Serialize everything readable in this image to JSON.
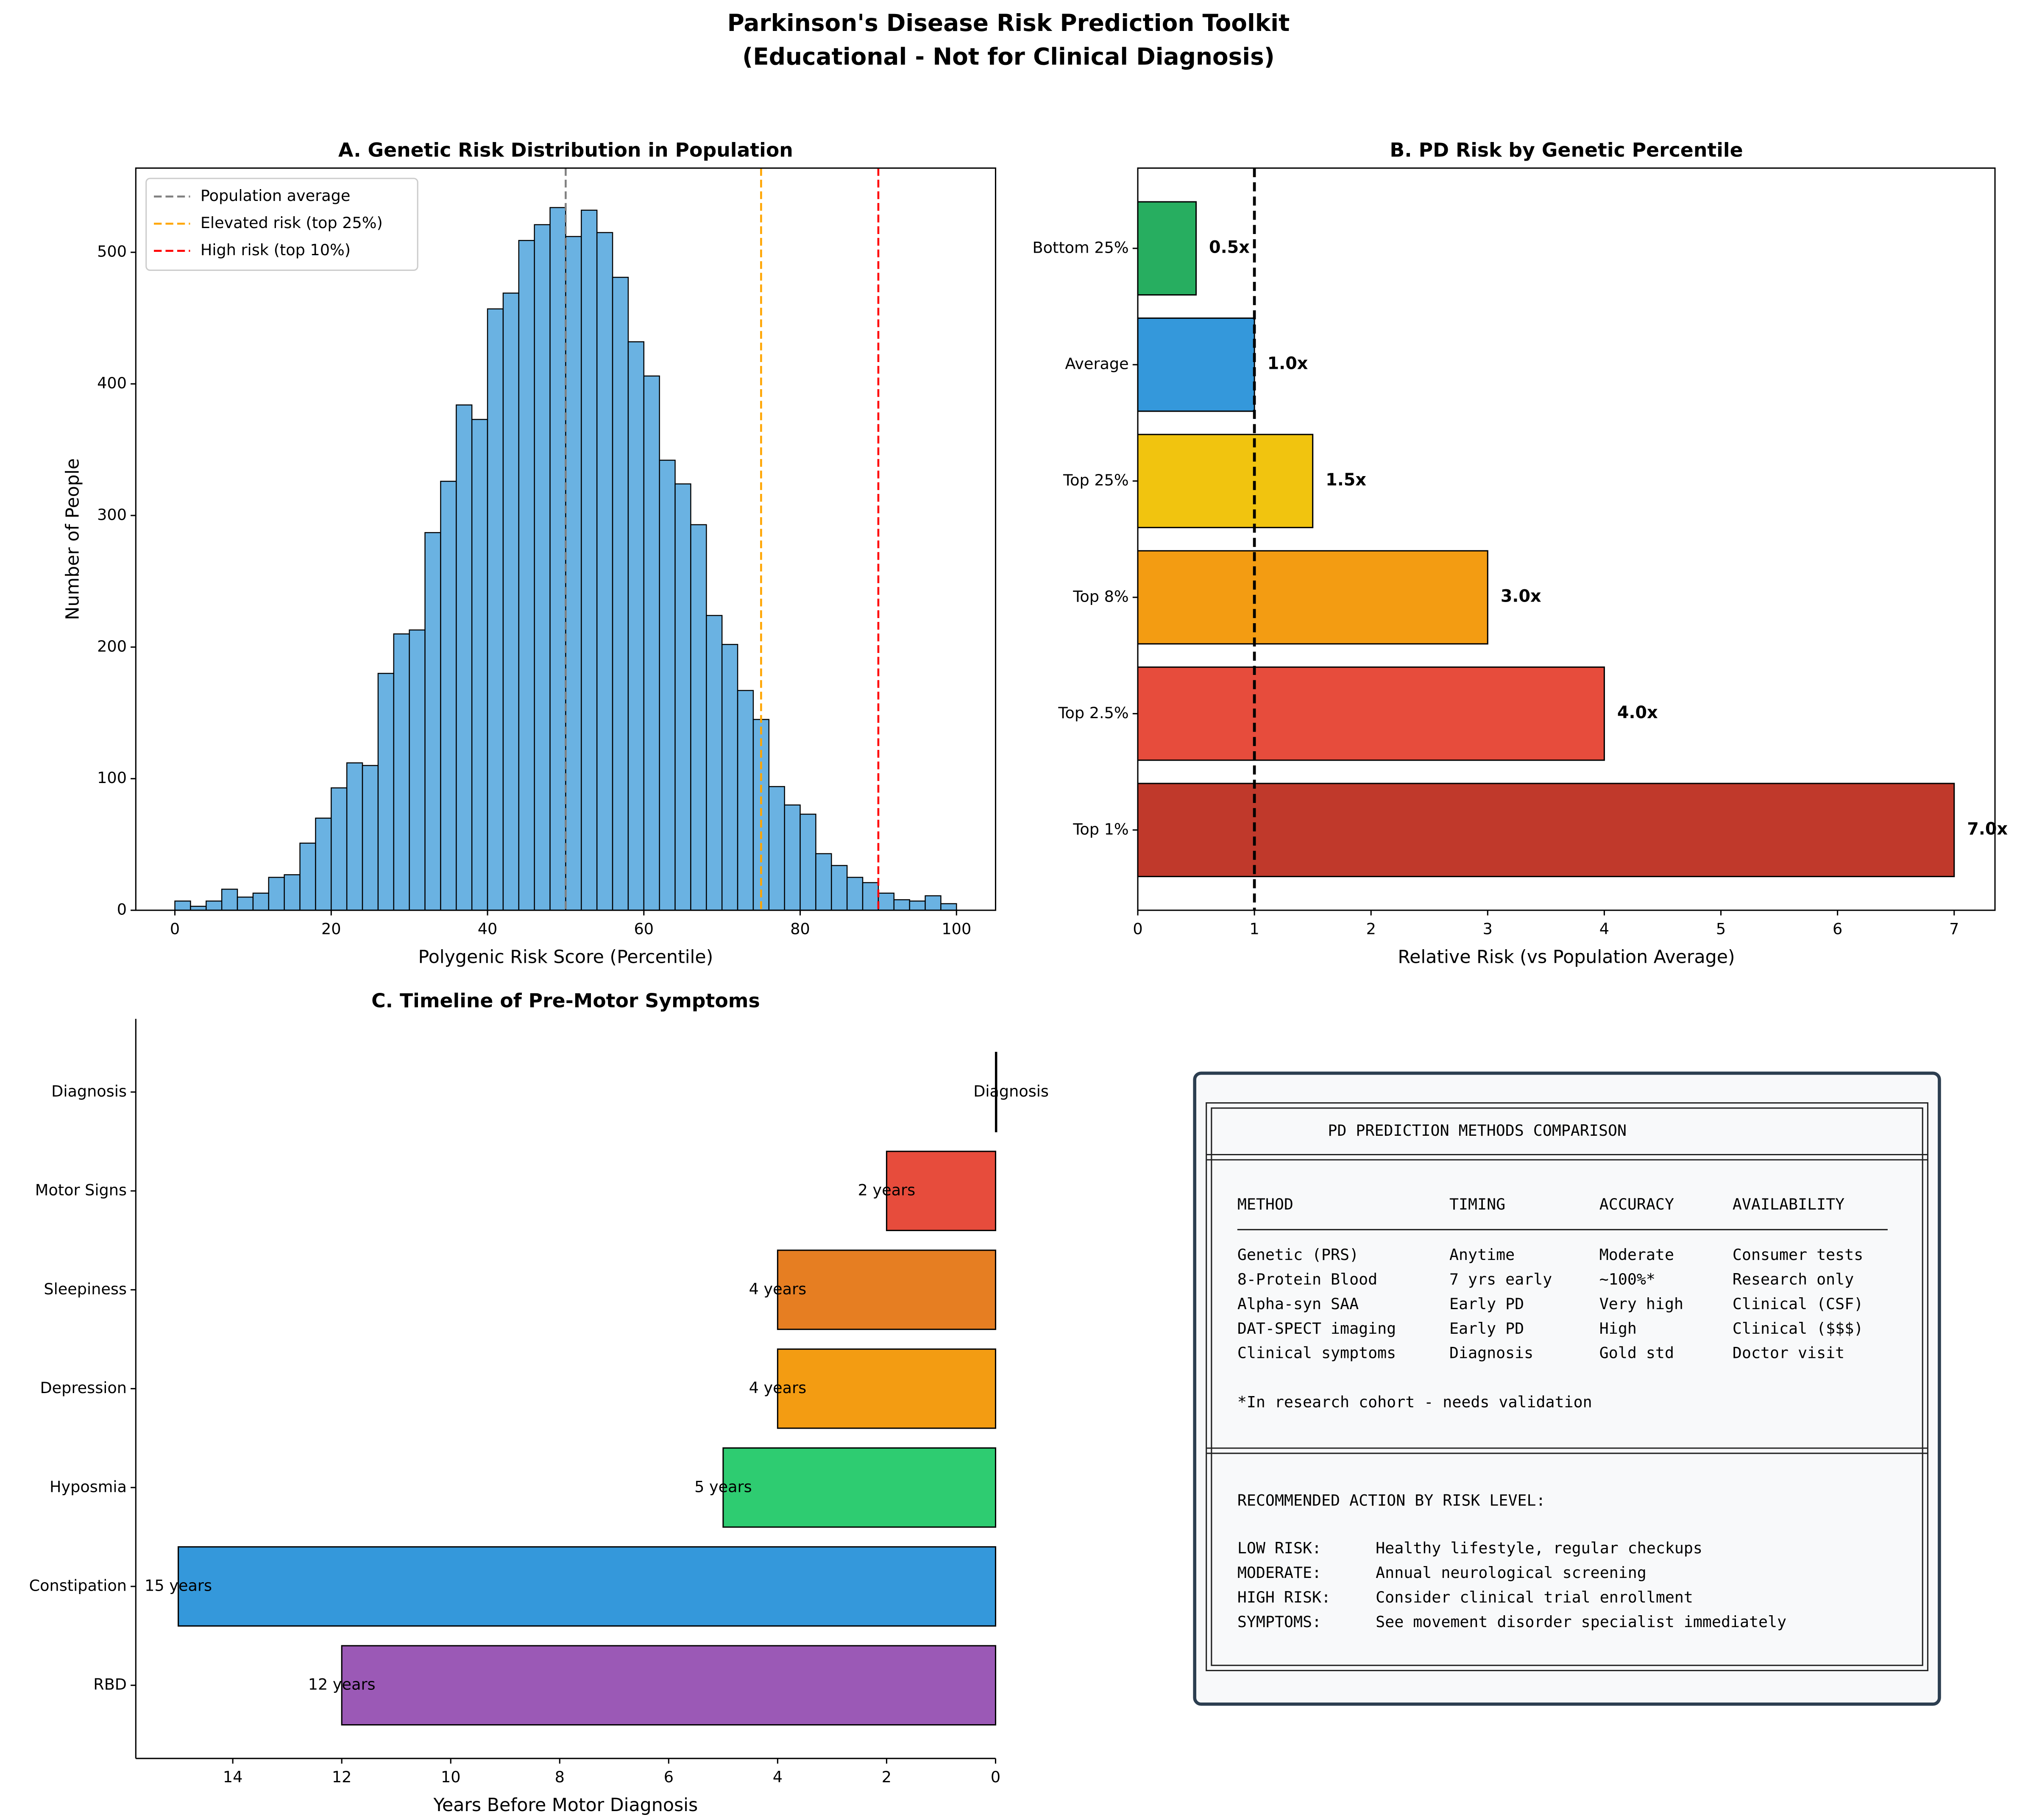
{
  "title": "Parkinson's Disease Risk Prediction Toolkit",
  "subtitle": "(Educational - Not for Clinical Diagnosis)",
  "chart_data": [
    {
      "type": "histogram",
      "title": "A. Genetic Risk Distribution in Population",
      "xlabel": "Polygenic Risk Score (Percentile)",
      "ylabel": "Number of People",
      "bins": [
        0,
        2,
        4,
        6,
        8,
        10,
        12,
        14,
        16,
        18,
        20,
        22,
        24,
        26,
        28,
        30,
        32,
        34,
        36,
        38,
        40,
        42,
        44,
        46,
        48,
        50,
        52,
        54,
        56,
        58,
        60,
        62,
        64,
        66,
        68,
        70,
        72,
        74,
        76,
        78,
        80,
        82,
        84,
        86,
        88,
        90,
        92,
        94,
        96,
        98,
        100
      ],
      "values": [
        7,
        3,
        7,
        16,
        10,
        13,
        25,
        27,
        51,
        70,
        93,
        112,
        110,
        180,
        210,
        213,
        287,
        326,
        384,
        373,
        457,
        469,
        509,
        521,
        534,
        512,
        532,
        515,
        481,
        432,
        406,
        342,
        324,
        293,
        224,
        202,
        167,
        145,
        94,
        80,
        73,
        43,
        34,
        25,
        21,
        13,
        8,
        7,
        11,
        5
      ],
      "color": "#6ab2e2",
      "xlim": [
        -5,
        105
      ],
      "ylim": [
        0,
        564
      ],
      "xticks": [
        0,
        20,
        40,
        60,
        80,
        100
      ],
      "yticks": [
        0,
        100,
        200,
        300,
        400,
        500
      ],
      "legend": "upper left",
      "vlines": [
        {
          "name": "Population average",
          "x": 50,
          "color": "#808080"
        },
        {
          "name": "Elevated risk (top 25%)",
          "x": 75,
          "color": "#ffa500"
        },
        {
          "name": "High risk (top 10%)",
          "x": 90,
          "color": "#ff0000"
        }
      ]
    },
    {
      "type": "barh",
      "title": "B. PD Risk by Genetic Percentile",
      "xlabel": "Relative Risk (vs Population Average)",
      "categories": [
        "Bottom 25%",
        "Average",
        "Top 25%",
        "Top 8%",
        "Top 2.5%",
        "Top 1%"
      ],
      "values": [
        0.5,
        1,
        1.5,
        3,
        4,
        7
      ],
      "value_labels": [
        "0.5x",
        "1.0x",
        "1.5x",
        "3.0x",
        "4.0x",
        "7.0x"
      ],
      "colors": [
        "#27ae60",
        "#3498db",
        "#f1c40f",
        "#f39c12",
        "#e74c3c",
        "#c0392b"
      ],
      "xlim": [
        0,
        7.35
      ],
      "xticks": [
        0,
        1,
        2,
        3,
        4,
        5,
        6,
        7
      ],
      "reference_line": 1
    },
    {
      "type": "barh",
      "title": "C. Timeline of Pre-Motor Symptoms",
      "xlabel": "Years Before Motor Diagnosis",
      "categories": [
        "Diagnosis",
        "Motor Signs",
        "Sleepiness",
        "Depression",
        "Hyposmia",
        "Constipation",
        "RBD"
      ],
      "values": [
        0,
        2,
        4,
        4,
        5,
        15,
        12
      ],
      "value_labels": [
        null,
        "2 years",
        "4 years",
        "4 years",
        "5 years",
        "15 years",
        "12 years"
      ],
      "colors": [
        "#2c3e50",
        "#e74c3c",
        "#e67e22",
        "#f39c12",
        "#2ecc71",
        "#3498db",
        "#9b59b6"
      ],
      "xlim": [
        15.78,
        0
      ],
      "xticks": [
        14,
        12,
        10,
        8,
        6,
        4,
        2,
        0
      ],
      "annotations": [
        {
          "text": "Diagnosis",
          "x": 0,
          "y": "Diagnosis"
        }
      ]
    }
  ],
  "text_box": {
    "title": "PD PREDICTION METHODS COMPARISON",
    "header": [
      "METHOD",
      "TIMING",
      "ACCURACY",
      "AVAILABILITY"
    ],
    "rows": [
      [
        "Genetic (PRS)",
        "Anytime",
        "Moderate",
        "Consumer tests"
      ],
      [
        "8-Protein Blood",
        "7 yrs early",
        "~100%*",
        "Research only"
      ],
      [
        "Alpha-syn SAA",
        "Early PD",
        "Very high",
        "Clinical (CSF)"
      ],
      [
        "DAT-SPECT imaging",
        "Early PD",
        "High",
        "Clinical ($$$)"
      ],
      [
        "Clinical symptoms",
        "Diagnosis",
        "Gold std",
        "Doctor visit"
      ]
    ],
    "footnote": "*In research cohort - needs validation",
    "action_title": "RECOMMENDED ACTION BY RISK LEVEL:",
    "actions": [
      [
        "LOW RISK:",
        "Healthy lifestyle, regular checkups"
      ],
      [
        "MODERATE:",
        "Annual neurological screening"
      ],
      [
        "HIGH RISK:",
        "Consider clinical trial enrollment"
      ],
      [
        "SYMPTOMS:",
        "See movement disorder specialist immediately"
      ]
    ]
  }
}
